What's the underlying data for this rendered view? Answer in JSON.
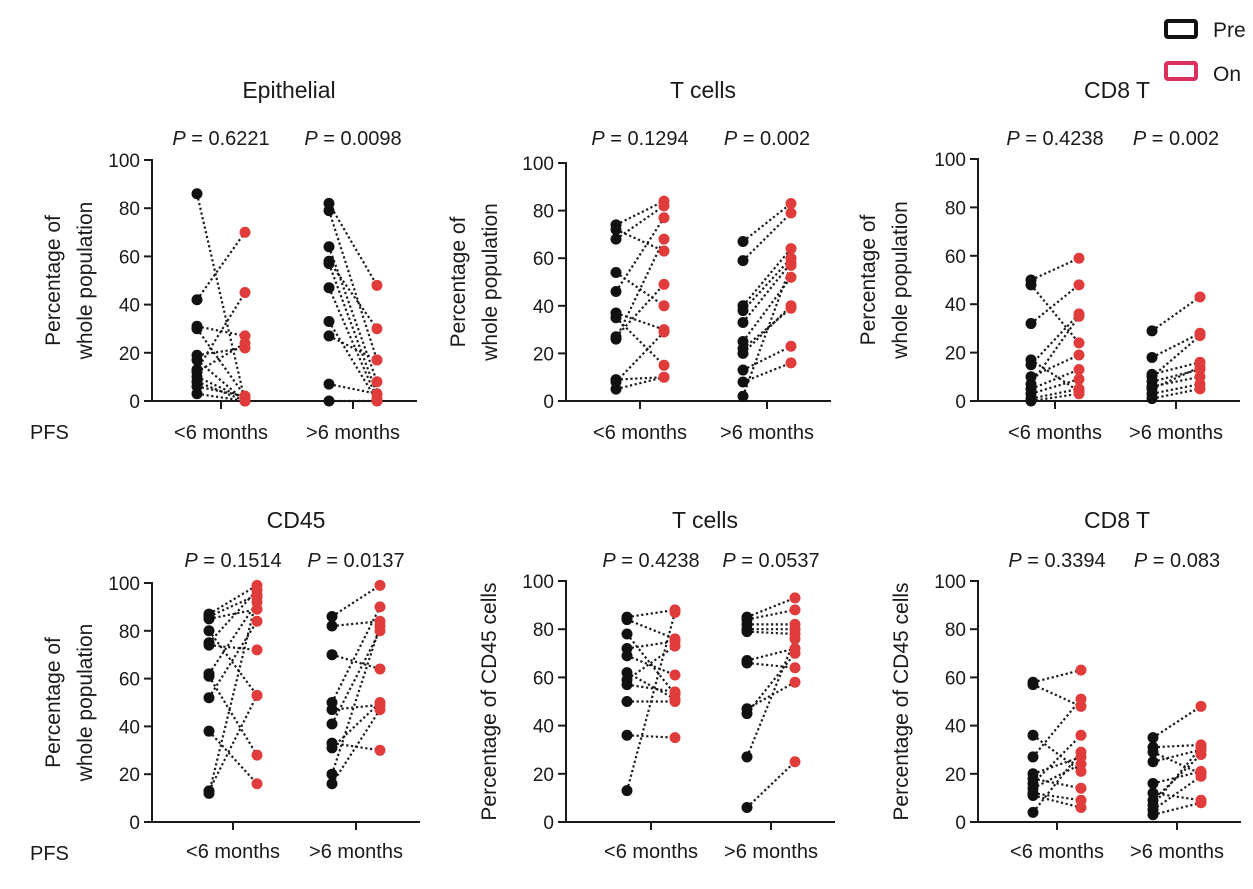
{
  "legend": {
    "items": [
      {
        "label": "Pre",
        "color": "#111111"
      },
      {
        "label": "On",
        "color": "#d9305c"
      }
    ]
  },
  "pfs_label": "PFS",
  "colors": {
    "pre": "#111111",
    "on": "#e03c3c"
  },
  "chart_data": [
    {
      "type": "scatter",
      "title": "Epithelial",
      "ylabel": [
        "Percentage of",
        "whole population"
      ],
      "ylim": [
        0,
        100
      ],
      "yticks": [
        0,
        20,
        40,
        60,
        80,
        100
      ],
      "categories": [
        "<6 months",
        ">6 months"
      ],
      "pvalues": [
        "0.6221",
        "0.0098"
      ],
      "groups": [
        {
          "category": "<6 months",
          "pre": [
            86,
            42,
            31,
            30,
            19,
            17,
            13,
            12,
            10,
            8,
            6,
            3
          ],
          "on": [
            0,
            70,
            27,
            2,
            22,
            0,
            45,
            24,
            1,
            0,
            2,
            0
          ]
        },
        {
          "category": ">6 months",
          "pre": [
            82,
            79,
            64,
            58,
            57,
            47,
            33,
            27,
            7,
            0
          ],
          "on": [
            48,
            17,
            8,
            30,
            3,
            1,
            0,
            17,
            3,
            0
          ]
        }
      ]
    },
    {
      "type": "scatter",
      "title": "T cells",
      "ylabel": [
        "Percentage of",
        "whole population"
      ],
      "ylim": [
        0,
        100
      ],
      "yticks": [
        0,
        20,
        40,
        60,
        80,
        100
      ],
      "categories": [
        "<6 months",
        ">6 months"
      ],
      "pvalues": [
        "0.1294",
        "0.002"
      ],
      "groups": [
        {
          "category": "<6 months",
          "pre": [
            74,
            72,
            68,
            54,
            46,
            37,
            35,
            27,
            26,
            9,
            8,
            5
          ],
          "on": [
            84,
            63,
            82,
            40,
            77,
            30,
            15,
            49,
            68,
            10,
            29,
            10
          ]
        },
        {
          "category": ">6 months",
          "pre": [
            67,
            59,
            40,
            38,
            33,
            25,
            22,
            20,
            13,
            8,
            2
          ],
          "on": [
            83,
            79,
            64,
            60,
            58,
            52,
            39,
            40,
            23,
            16,
            57
          ]
        }
      ]
    },
    {
      "type": "scatter",
      "title": "CD8 T",
      "ylabel": [
        "Percentage of",
        "whole population"
      ],
      "ylim": [
        0,
        100
      ],
      "yticks": [
        0,
        20,
        40,
        60,
        80,
        100
      ],
      "categories": [
        "<6 months",
        ">6 months"
      ],
      "pvalues": [
        "0.4238",
        "0.002"
      ],
      "groups": [
        {
          "category": "<6 months",
          "pre": [
            50,
            48,
            32,
            17,
            15,
            10,
            7,
            5,
            3,
            1,
            0
          ],
          "on": [
            59,
            24,
            48,
            4,
            36,
            19,
            35,
            13,
            9,
            5,
            3
          ]
        },
        {
          "category": ">6 months",
          "pre": [
            29,
            18,
            11,
            10,
            8,
            6,
            5,
            3,
            1
          ],
          "on": [
            43,
            28,
            16,
            27,
            13,
            10,
            14,
            7,
            5
          ]
        }
      ]
    },
    {
      "type": "scatter",
      "title": "CD45",
      "ylabel": [
        "Percentage of",
        "whole population"
      ],
      "ylim": [
        0,
        100
      ],
      "yticks": [
        0,
        20,
        40,
        60,
        80,
        100
      ],
      "categories": [
        "<6 months",
        ">6 months"
      ],
      "pvalues": [
        "0.1514",
        "0.0137"
      ],
      "groups": [
        {
          "category": "<6 months",
          "pre": [
            87,
            86,
            85,
            80,
            75,
            74,
            62,
            61,
            52,
            38,
            13,
            12
          ],
          "on": [
            99,
            95,
            89,
            53,
            97,
            72,
            92,
            28,
            84,
            16,
            53,
            94
          ]
        },
        {
          "category": ">6 months",
          "pre": [
            86,
            82,
            70,
            50,
            47,
            41,
            33,
            31,
            20,
            16
          ],
          "on": [
            99,
            84,
            64,
            90,
            49,
            80,
            30,
            50,
            82,
            47
          ]
        }
      ]
    },
    {
      "type": "scatter",
      "title": "T cells",
      "ylabel": [
        "Percentage of CD45 cells"
      ],
      "ylim": [
        0,
        100
      ],
      "yticks": [
        0,
        20,
        40,
        60,
        80,
        100
      ],
      "categories": [
        "<6 months",
        ">6 months"
      ],
      "pvalues": [
        "0.4238",
        "0.0537"
      ],
      "groups": [
        {
          "category": "<6 months",
          "pre": [
            85,
            84,
            78,
            72,
            69,
            62,
            59,
            57,
            50,
            36,
            13
          ],
          "on": [
            88,
            76,
            53,
            75,
            61,
            51,
            73,
            54,
            50,
            35,
            87
          ]
        },
        {
          "category": ">6 months",
          "pre": [
            85,
            84,
            82,
            80,
            79,
            67,
            66,
            47,
            45,
            27,
            6
          ],
          "on": [
            93,
            88,
            82,
            80,
            78,
            72,
            64,
            58,
            70,
            76,
            25
          ]
        }
      ]
    },
    {
      "type": "scatter",
      "title": "CD8 T",
      "ylabel": [
        "Percentage of CD45 cells"
      ],
      "ylim": [
        0,
        100
      ],
      "yticks": [
        0,
        20,
        40,
        60,
        80,
        100
      ],
      "categories": [
        "<6 months",
        ">6 months"
      ],
      "pvalues": [
        "0.3394",
        "0.083"
      ],
      "groups": [
        {
          "category": "<6 months",
          "pre": [
            58,
            57,
            36,
            27,
            20,
            18,
            16,
            14,
            12,
            11,
            4
          ],
          "on": [
            63,
            48,
            21,
            51,
            27,
            14,
            36,
            24,
            9,
            6,
            29
          ]
        },
        {
          "category": ">6 months",
          "pre": [
            35,
            31,
            29,
            25,
            16,
            12,
            9,
            7,
            5,
            3
          ],
          "on": [
            48,
            32,
            20,
            30,
            21,
            9,
            28,
            31,
            19,
            8
          ]
        }
      ]
    }
  ]
}
